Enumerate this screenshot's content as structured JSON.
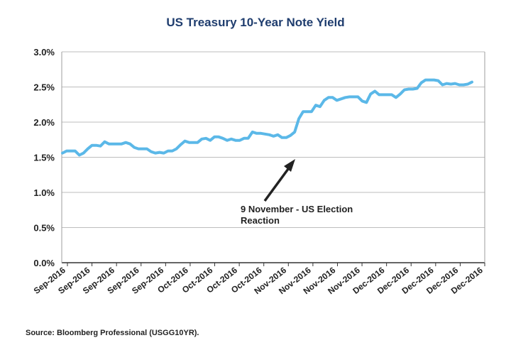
{
  "chart_data": {
    "type": "line",
    "title": "US Treasury 10-Year Note Yield",
    "xlabel": "",
    "ylabel": "",
    "ylim": [
      0,
      3.0
    ],
    "y_ticks": [
      "0.0%",
      "0.5%",
      "1.0%",
      "1.5%",
      "2.0%",
      "2.5%",
      "3.0%"
    ],
    "y_tick_values": [
      0,
      0.5,
      1.0,
      1.5,
      2.0,
      2.5,
      3.0
    ],
    "x_ticks": [
      "Sep-2016",
      "Sep-2016",
      "Sep-2016",
      "Sep-2016",
      "Sep-2016",
      "Oct-2016",
      "Oct-2016",
      "Oct-2016",
      "Oct-2016",
      "Nov-2016",
      "Nov-2016",
      "Nov-2016",
      "Nov-2016",
      "Dec-2016",
      "Dec-2016",
      "Dec-2016",
      "Dec-2016",
      "Dec-2016"
    ],
    "grid": true,
    "line_color": "#5bb8e8",
    "series": [
      {
        "name": "",
        "values": [
          1.56,
          1.59,
          1.59,
          1.59,
          1.53,
          1.56,
          1.62,
          1.67,
          1.67,
          1.66,
          1.72,
          1.69,
          1.69,
          1.69,
          1.69,
          1.71,
          1.69,
          1.64,
          1.62,
          1.62,
          1.62,
          1.58,
          1.56,
          1.57,
          1.56,
          1.59,
          1.59,
          1.62,
          1.68,
          1.73,
          1.71,
          1.71,
          1.71,
          1.76,
          1.77,
          1.74,
          1.79,
          1.79,
          1.77,
          1.74,
          1.76,
          1.74,
          1.74,
          1.77,
          1.77,
          1.86,
          1.84,
          1.84,
          1.83,
          1.82,
          1.8,
          1.82,
          1.78,
          1.78,
          1.81,
          1.86,
          2.05,
          2.15,
          2.15,
          2.15,
          2.24,
          2.22,
          2.31,
          2.35,
          2.35,
          2.31,
          2.33,
          2.35,
          2.36,
          2.36,
          2.36,
          2.3,
          2.28,
          2.4,
          2.44,
          2.39,
          2.39,
          2.39,
          2.39,
          2.35,
          2.4,
          2.46,
          2.47,
          2.47,
          2.48,
          2.56,
          2.6,
          2.6,
          2.6,
          2.59,
          2.53,
          2.55,
          2.54,
          2.55,
          2.53,
          2.53,
          2.54,
          2.57
        ]
      }
    ],
    "annotations": [
      {
        "text_lines": [
          "9 November - US Election",
          "Reaction"
        ]
      }
    ],
    "source": "Source: Bloomberg Professional (USGG10YR)."
  }
}
